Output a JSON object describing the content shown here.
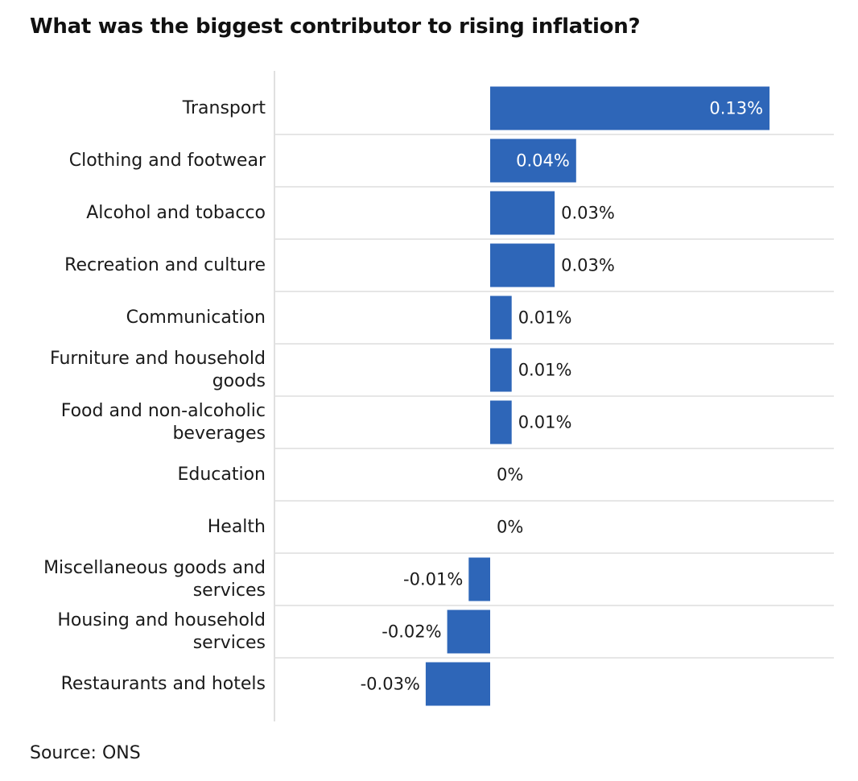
{
  "title": "What was the biggest contributor to rising inflation?",
  "source": "Source: ONS",
  "colors": {
    "bar": "#2e66b8",
    "grid": "#e6e6e6",
    "text": "#1a1a1a",
    "inside_label": "#ffffff"
  },
  "chart_data": {
    "type": "bar",
    "orientation": "horizontal",
    "title": "What was the biggest contributor to rising inflation?",
    "xlabel": "",
    "ylabel": "",
    "categories": [
      "Transport",
      "Clothing and footwear",
      "Alcohol and tobacco",
      "Recreation and culture",
      "Communication",
      "Furniture and household goods",
      "Food and non-alcoholic beverages",
      "Education",
      "Health",
      "Miscellaneous goods and services",
      "Housing and household services",
      "Restaurants and hotels"
    ],
    "values": [
      0.13,
      0.04,
      0.03,
      0.03,
      0.01,
      0.01,
      0.01,
      0,
      0,
      -0.01,
      -0.02,
      -0.03
    ],
    "value_labels": [
      "0.13%",
      "0.04%",
      "0.03%",
      "0.03%",
      "0.01%",
      "0.01%",
      "0.01%",
      "0%",
      "0%",
      "-0.01%",
      "-0.02%",
      "-0.03%"
    ],
    "xlim": [
      -0.1,
      0.16
    ],
    "grid": true,
    "legend": "none"
  }
}
